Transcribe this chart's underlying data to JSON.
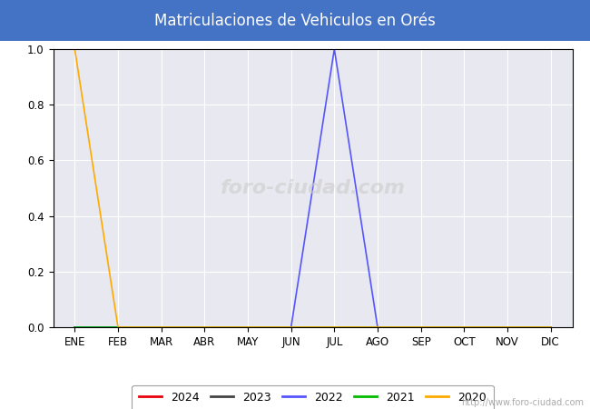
{
  "title": "Matriculaciones de Vehiculos en Orés",
  "title_color": "#ffffff",
  "title_bg_color": "#4472c4",
  "months": [
    "ENE",
    "FEB",
    "MAR",
    "ABR",
    "MAY",
    "JUN",
    "JUL",
    "AGO",
    "SEP",
    "OCT",
    "NOV",
    "DIC"
  ],
  "series": {
    "2024": {
      "color": "#e8000a",
      "values": [
        0,
        0,
        0,
        0,
        0,
        0,
        0,
        0,
        0,
        0,
        0,
        0
      ]
    },
    "2023": {
      "color": "#444444",
      "values": [
        0,
        0,
        0,
        0,
        0,
        0,
        0,
        0,
        0,
        0,
        0,
        0
      ]
    },
    "2022": {
      "color": "#5555ff",
      "values": [
        0,
        0,
        0,
        0,
        0,
        0,
        1.0,
        0,
        0,
        0,
        0,
        0
      ]
    },
    "2021": {
      "color": "#00bb00",
      "values": [
        0,
        0,
        0,
        0,
        0,
        0,
        0,
        0,
        0,
        0,
        0,
        0
      ]
    },
    "2020": {
      "color": "#ffaa00",
      "values": [
        1.0,
        0,
        0,
        0,
        0,
        0,
        0,
        0,
        0,
        0,
        0,
        0
      ]
    }
  },
  "legend_order": [
    "2024",
    "2023",
    "2022",
    "2021",
    "2020"
  ],
  "ylim": [
    0.0,
    1.0
  ],
  "yticks": [
    0.0,
    0.2,
    0.4,
    0.6,
    0.8,
    1.0
  ],
  "plot_bg_color": "#e8e8f0",
  "grid_color": "#ffffff",
  "watermark_text": "foro-ciudad.com",
  "watermark_color": "#cccccc",
  "url_text": "http://www.foro-ciudad.com",
  "url_color": "#aaaaaa",
  "fig_width": 6.5,
  "fig_height": 4.5,
  "dpi": 100
}
